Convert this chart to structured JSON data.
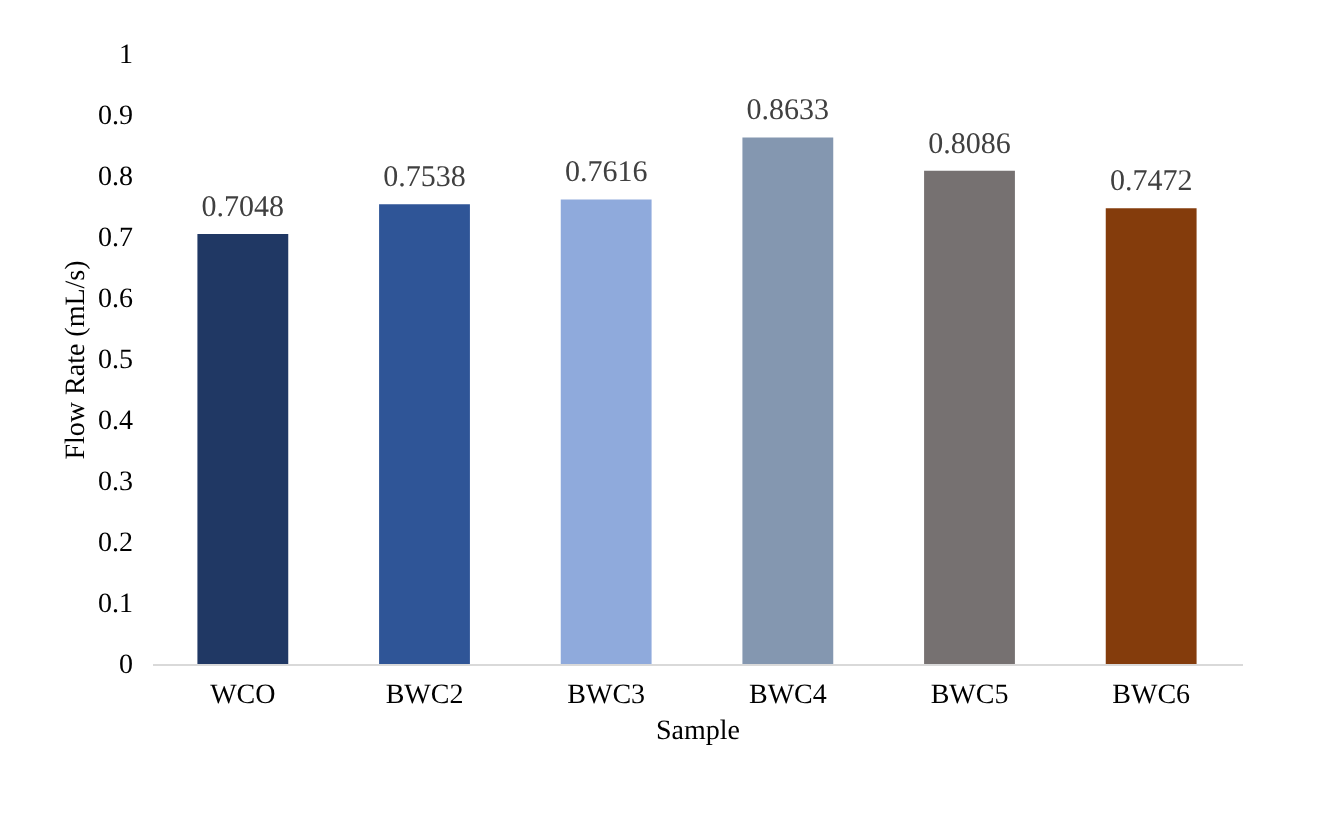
{
  "chart_data": {
    "type": "bar",
    "xlabel": "Sample",
    "ylabel": "Flow Rate (mL/s)",
    "categories": [
      "WCO",
      "BWC2",
      "BWC3",
      "BWC4",
      "BWC5",
      "BWC6"
    ],
    "values": [
      0.7048,
      0.7538,
      0.7616,
      0.8633,
      0.8086,
      0.7472
    ],
    "colors": [
      "#203864",
      "#2f5597",
      "#8faadc",
      "#8497b0",
      "#767171",
      "#843c0c"
    ],
    "ylim": [
      0,
      1
    ],
    "yticks": [
      0,
      0.1,
      0.2,
      0.3,
      0.4,
      0.5,
      0.6,
      0.7,
      0.8,
      0.9,
      1
    ],
    "grid": false,
    "data_labels": true
  }
}
